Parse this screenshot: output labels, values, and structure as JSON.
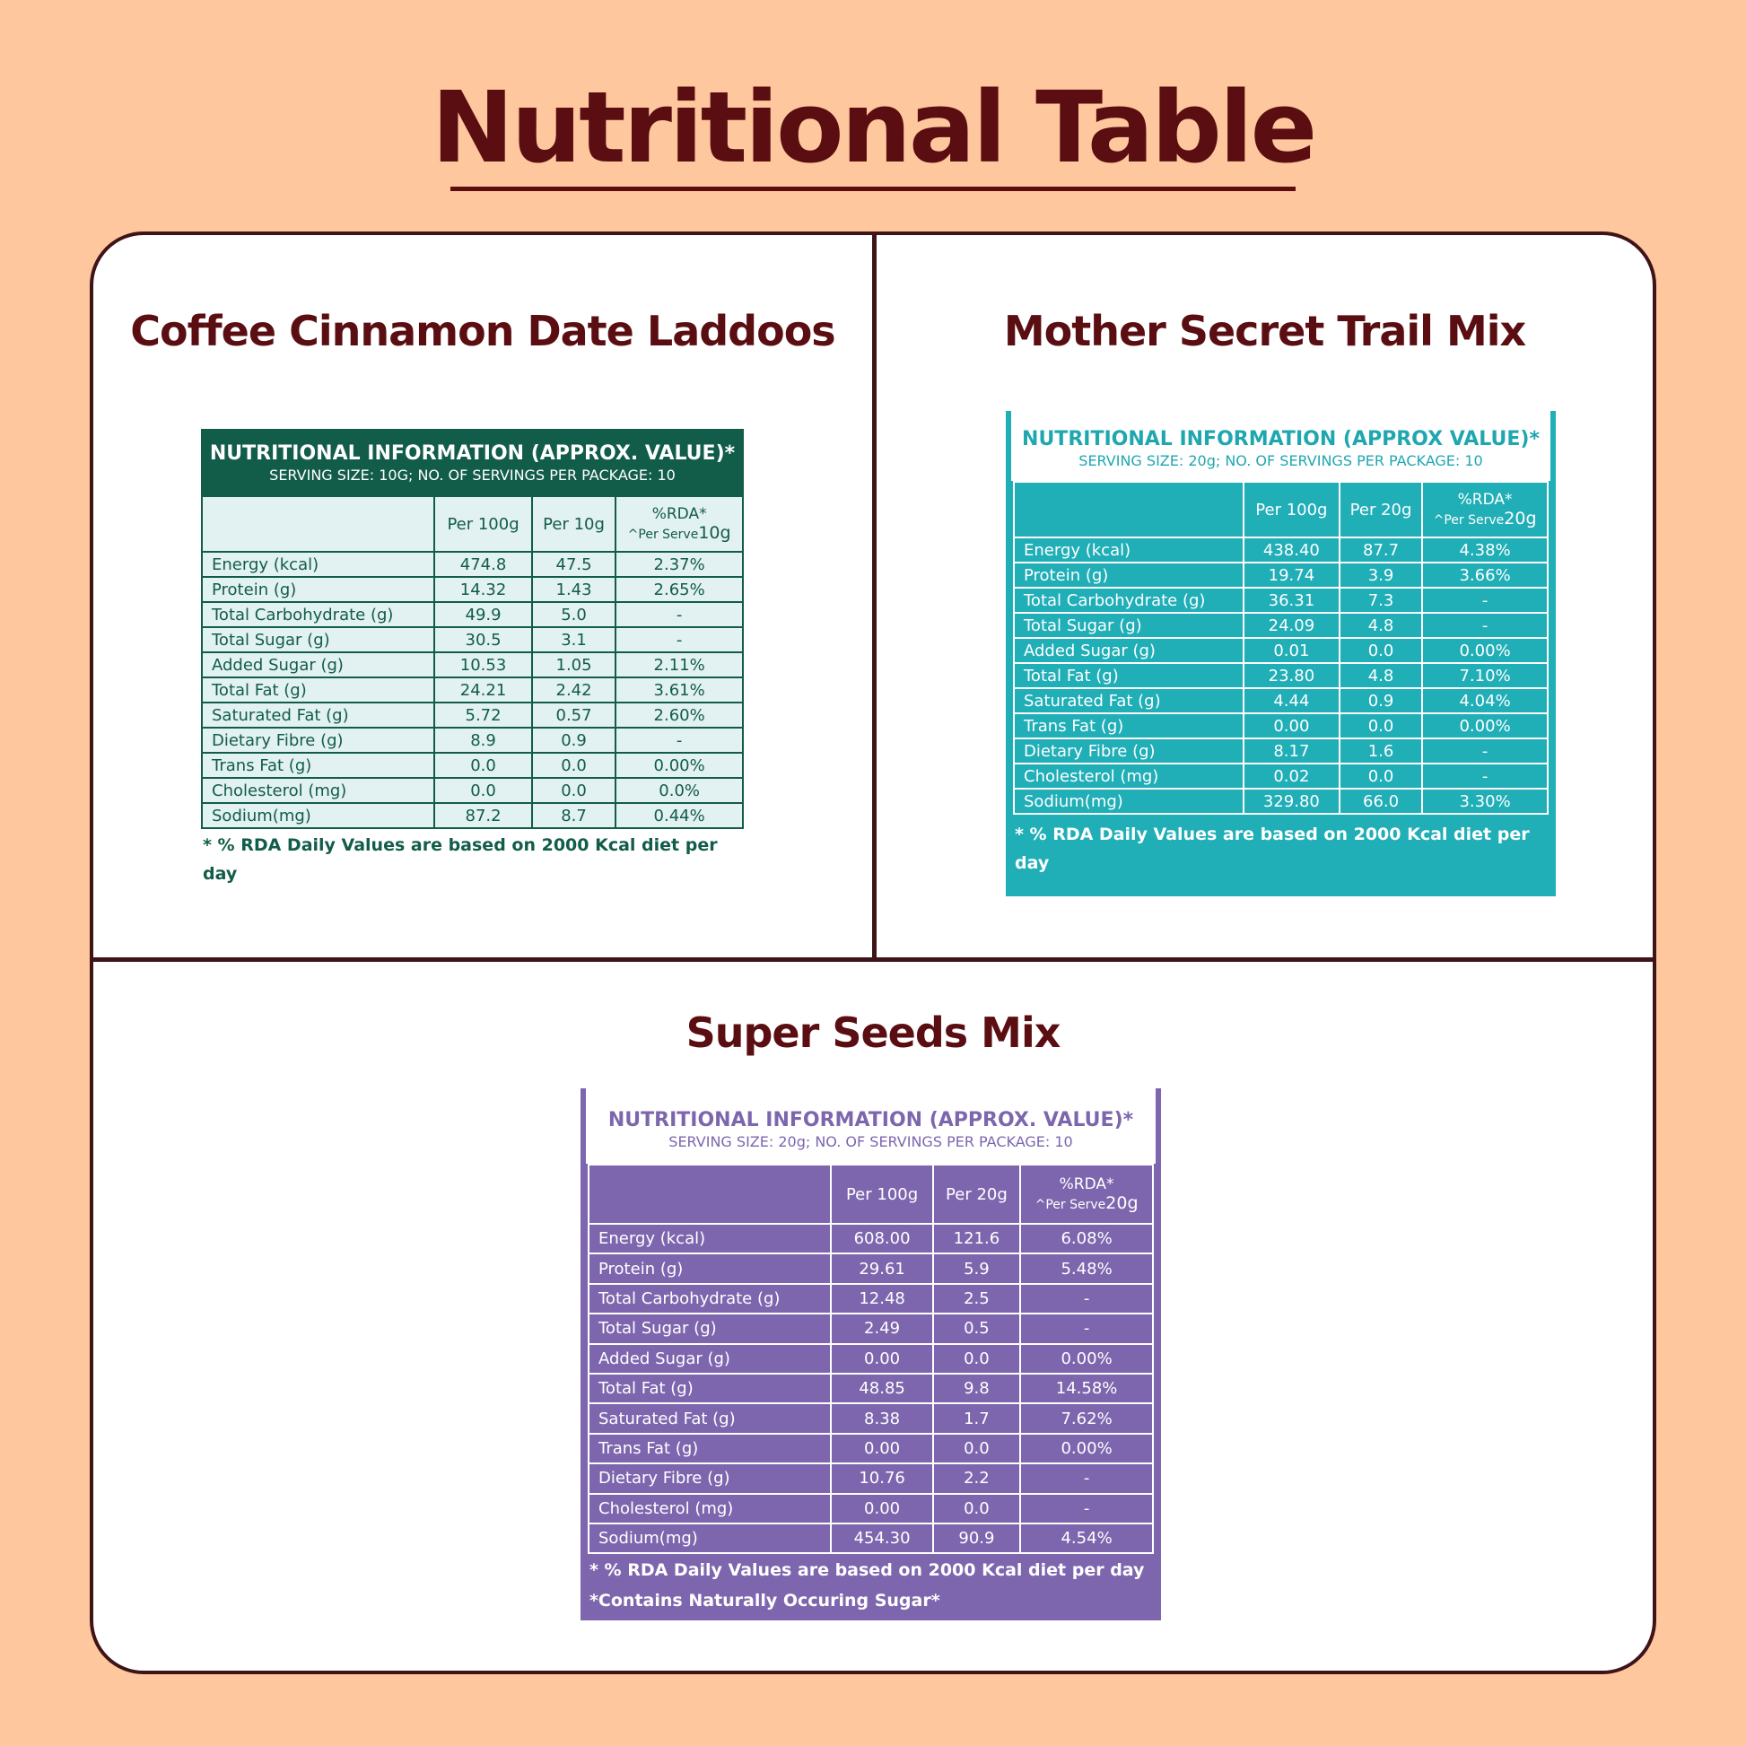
{
  "page": {
    "title": "Nutritional Table"
  },
  "colors": {
    "background": "#FFC79E",
    "title": "#5A0E12",
    "border": "#3E1418",
    "green_panel": "#125C4A",
    "green_fill": "#E2F1F1",
    "teal_panel": "#20AEB7",
    "purple_panel": "#7D66AE"
  },
  "products": [
    {
      "name": "Coffee Cinnamon Date Laddoos",
      "panel_title": "NUTRITIONAL INFORMATION (APPROX. VALUE)*",
      "serving": "SERVING SIZE: 10G; NO. OF SERVINGS PER PACKAGE: 10",
      "columns": [
        "",
        "Per 100g",
        "Per 10g",
        "%RDA*"
      ],
      "rda_sub": "^Per Serve",
      "rda_sub_size": "10g",
      "rows": [
        [
          "Energy (kcal)",
          "474.8",
          "47.5",
          "2.37%"
        ],
        [
          "Protein (g)",
          "14.32",
          "1.43",
          "2.65%"
        ],
        [
          "Total Carbohydrate (g)",
          "49.9",
          "5.0",
          "-"
        ],
        [
          "Total Sugar (g)",
          "30.5",
          "3.1",
          "-"
        ],
        [
          "Added Sugar (g)",
          "10.53",
          "1.05",
          "2.11%"
        ],
        [
          "Total Fat (g)",
          "24.21",
          "2.42",
          "3.61%"
        ],
        [
          "Saturated Fat (g)",
          "5.72",
          "0.57",
          "2.60%"
        ],
        [
          "Dietary Fibre (g)",
          "8.9",
          "0.9",
          "-"
        ],
        [
          "Trans Fat (g)",
          "0.0",
          "0.0",
          "0.00%"
        ],
        [
          "Cholesterol (mg)",
          "0.0",
          "0.0",
          "0.0%"
        ],
        [
          "Sodium(mg)",
          "87.2",
          "8.7",
          "0.44%"
        ]
      ],
      "footnotes": [
        "* % RDA Daily Values are based on 2000 Kcal diet per day"
      ]
    },
    {
      "name": "Mother Secret Trail Mix",
      "panel_title": "NUTRITIONAL INFORMATION (APPROX  VALUE)*",
      "serving": "SERVING SIZE: 20g; NO. OF SERVINGS PER PACKAGE: 10",
      "columns": [
        "",
        "Per 100g",
        "Per 20g",
        "%RDA*"
      ],
      "rda_sub": "^Per Serve",
      "rda_sub_size": "20g",
      "rows": [
        [
          "Energy (kcal)",
          "438.40",
          "87.7",
          "4.38%"
        ],
        [
          "Protein (g)",
          "19.74",
          "3.9",
          "3.66%"
        ],
        [
          "Total Carbohydrate (g)",
          "36.31",
          "7.3",
          "-"
        ],
        [
          "Total Sugar (g)",
          "24.09",
          "4.8",
          "-"
        ],
        [
          "Added Sugar (g)",
          "0.01",
          "0.0",
          "0.00%"
        ],
        [
          "Total Fat (g)",
          "23.80",
          "4.8",
          "7.10%"
        ],
        [
          "Saturated Fat (g)",
          "4.44",
          "0.9",
          "4.04%"
        ],
        [
          "Trans Fat (g)",
          "0.00",
          "0.0",
          "0.00%"
        ],
        [
          "Dietary Fibre (g)",
          "8.17",
          "1.6",
          "-"
        ],
        [
          "Cholesterol (mg)",
          "0.02",
          "0.0",
          "-"
        ],
        [
          "Sodium(mg)",
          "329.80",
          "66.0",
          "3.30%"
        ]
      ],
      "footnotes": [
        "* % RDA Daily Values are based on 2000 Kcal diet per day"
      ]
    },
    {
      "name": "Super Seeds Mix",
      "panel_title": "NUTRITIONAL INFORMATION (APPROX. VALUE)*",
      "serving": "SERVING SIZE: 20g; NO. OF SERVINGS PER PACKAGE: 10",
      "columns": [
        "",
        "Per 100g",
        "Per 20g",
        "%RDA*"
      ],
      "rda_sub": "^Per Serve",
      "rda_sub_size": "20g",
      "rows": [
        [
          "Energy (kcal)",
          "608.00",
          "121.6",
          "6.08%"
        ],
        [
          "Protein (g)",
          "29.61",
          "5.9",
          "5.48%"
        ],
        [
          "Total Carbohydrate (g)",
          "12.48",
          "2.5",
          "-"
        ],
        [
          "Total Sugar (g)",
          "2.49",
          "0.5",
          "-"
        ],
        [
          "Added Sugar (g)",
          "0.00",
          "0.0",
          "0.00%"
        ],
        [
          "Total Fat (g)",
          "48.85",
          "9.8",
          "14.58%"
        ],
        [
          "Saturated Fat (g)",
          "8.38",
          "1.7",
          "7.62%"
        ],
        [
          "Trans Fat (g)",
          "0.00",
          "0.0",
          "0.00%"
        ],
        [
          "Dietary Fibre (g)",
          "10.76",
          "2.2",
          "-"
        ],
        [
          "Cholesterol (mg)",
          "0.00",
          "0.0",
          "-"
        ],
        [
          "Sodium(mg)",
          "454.30",
          "90.9",
          "4.54%"
        ]
      ],
      "footnotes": [
        "* % RDA Daily Values are based on 2000 Kcal diet per day",
        "*Contains Naturally Occuring Sugar*"
      ]
    }
  ]
}
